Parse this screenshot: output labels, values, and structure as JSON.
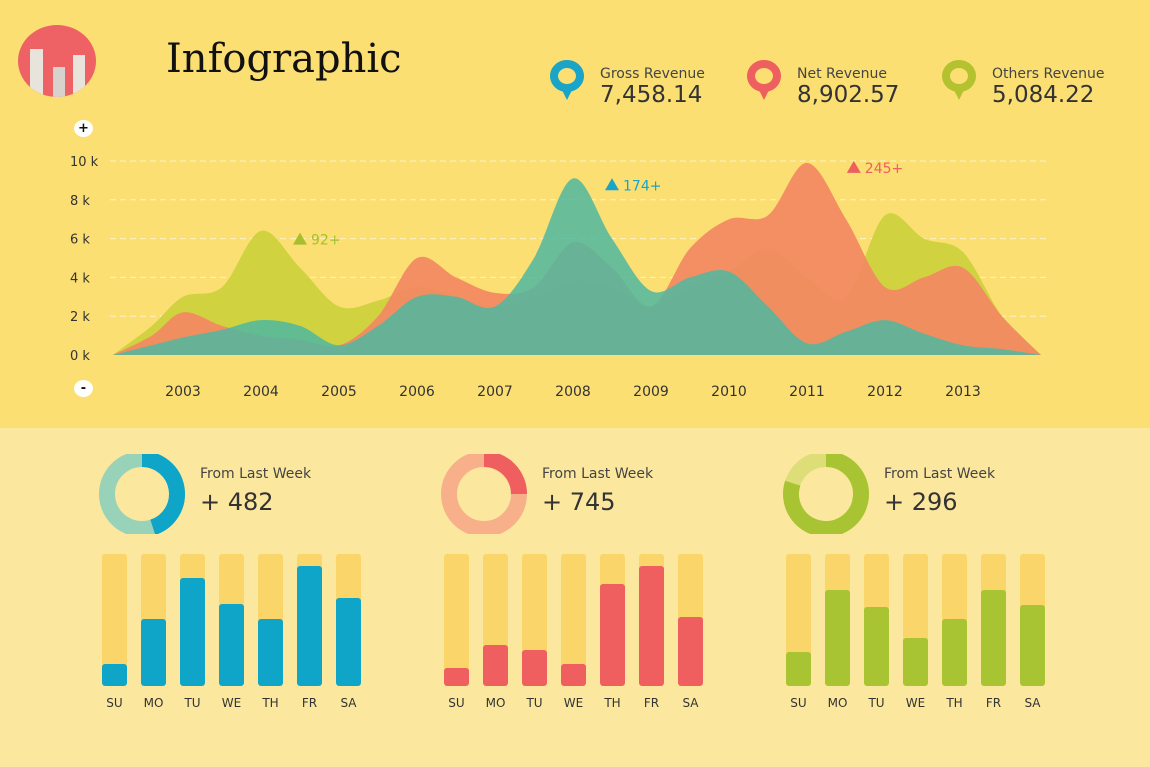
{
  "header": {
    "title": "Infographic"
  },
  "legend": [
    {
      "label": "Gross Revenue",
      "value": "7,458.14",
      "color": "#19a4c8"
    },
    {
      "label": "Net Revenue",
      "value": "8,902.57",
      "color": "#ee5f5f"
    },
    {
      "label": "Others Revenue",
      "value": "5,084.22",
      "color": "#b5c230"
    }
  ],
  "zoom": {
    "in": "+",
    "out": "-"
  },
  "chart_data": [
    {
      "type": "area",
      "xlabel": "",
      "ylabel": "",
      "ylim": [
        0,
        10000
      ],
      "yticks": [
        "0 k",
        "2 k",
        "4 k",
        "6 k",
        "8 k",
        "10 k"
      ],
      "xticks": [
        "2003",
        "2004",
        "2005",
        "2006",
        "2007",
        "2008",
        "2009",
        "2010",
        "2011",
        "2012",
        "2013"
      ],
      "grid": true,
      "x": [
        2002.1,
        2002.6,
        2003,
        2003.5,
        2004,
        2004.5,
        2005,
        2005.5,
        2006,
        2006.5,
        2007,
        2007.5,
        2008,
        2008.5,
        2009,
        2009.5,
        2010,
        2010.5,
        2011,
        2011.5,
        2012,
        2012.5,
        2013,
        2013.5,
        2014
      ],
      "series": [
        {
          "name": "Others Revenue",
          "color": "#cdd13c",
          "values": [
            0,
            1500,
            3000,
            3500,
            6400,
            4500,
            2500,
            2800,
            3500,
            3000,
            2500,
            3000,
            3800,
            3500,
            2500,
            3500,
            4300,
            5500,
            4000,
            3000,
            7200,
            6000,
            5300,
            2000,
            0
          ]
        },
        {
          "name": "Net Revenue",
          "color": "#f28a62",
          "values": [
            0,
            1000,
            2200,
            1500,
            1000,
            800,
            500,
            2000,
            5000,
            4000,
            3200,
            3500,
            5800,
            4500,
            2500,
            5500,
            7000,
            7200,
            9900,
            7000,
            3500,
            4000,
            4500,
            2000,
            0
          ]
        },
        {
          "name": "Gross Revenue",
          "color": "#4fb8a0",
          "values": [
            0,
            500,
            900,
            1300,
            1800,
            1500,
            500,
            1500,
            3000,
            3000,
            2500,
            5000,
            9100,
            6000,
            3300,
            4000,
            4300,
            2500,
            600,
            1200,
            1800,
            1100,
            500,
            300,
            0
          ]
        }
      ],
      "annotations": [
        {
          "text": "92+",
          "color": "#a7bf2e",
          "x": 2004.5,
          "y": 6000
        },
        {
          "text": "174+",
          "color": "#19a4c8",
          "x": 2008.5,
          "y": 8800
        },
        {
          "text": "245+",
          "color": "#ee5f5f",
          "x": 2011.6,
          "y": 9700
        }
      ]
    },
    {
      "type": "bar",
      "title": "From Last Week",
      "total": "+ 482",
      "donut_fraction": 0.45,
      "color": "#0ea5c8",
      "donut_light": "#98d2b8",
      "categories": [
        "SU",
        "MO",
        "TU",
        "WE",
        "TH",
        "FR",
        "SA"
      ],
      "values": [
        0.17,
        0.51,
        0.82,
        0.62,
        0.51,
        0.91,
        0.67
      ]
    },
    {
      "type": "bar",
      "title": "From Last Week",
      "total": "+ 745",
      "donut_fraction": 0.25,
      "color": "#ef5f5f",
      "donut_light": "#f7b08a",
      "categories": [
        "SU",
        "MO",
        "TU",
        "WE",
        "TH",
        "FR",
        "SA"
      ],
      "values": [
        0.14,
        0.31,
        0.27,
        0.17,
        0.77,
        0.91,
        0.52
      ]
    },
    {
      "type": "bar",
      "title": "From Last Week",
      "total": "+ 296",
      "donut_fraction": 0.8,
      "color": "#a9c433",
      "donut_light": "#dede78",
      "categories": [
        "SU",
        "MO",
        "TU",
        "WE",
        "TH",
        "FR",
        "SA"
      ],
      "values": [
        0.26,
        0.73,
        0.6,
        0.36,
        0.51,
        0.73,
        0.61
      ]
    }
  ]
}
